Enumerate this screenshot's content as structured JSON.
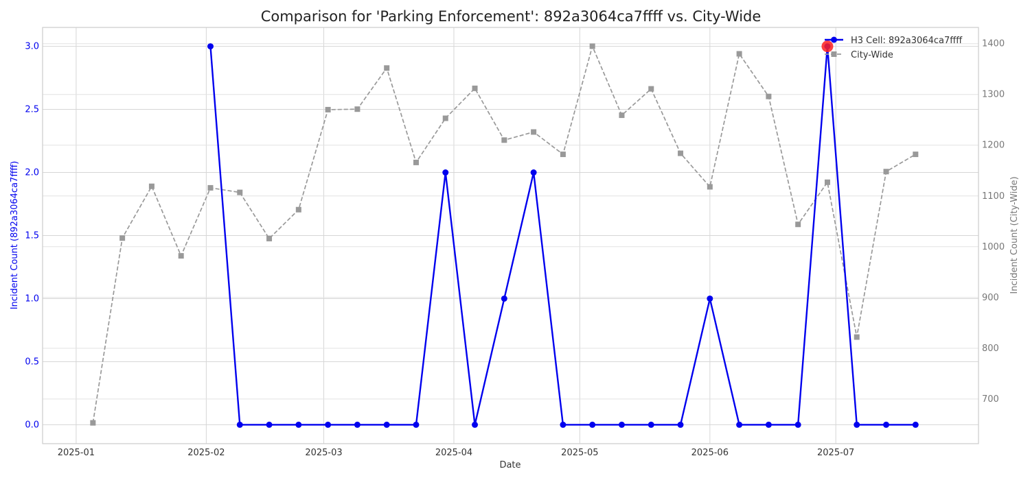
{
  "chart_data": {
    "type": "line",
    "title": "Comparison for 'Parking Enforcement': 892a3064ca7ffff vs. City-Wide",
    "xlabel": "Date",
    "ylabel_left": "Incident Count (892a3064ca7ffff)",
    "ylabel_right": "Incident Count (City-Wide)",
    "x_ticks": [
      "2025-01",
      "2025-02",
      "2025-03",
      "2025-04",
      "2025-05",
      "2025-06",
      "2025-07"
    ],
    "x_tick_dates": [
      "2025-01-01",
      "2025-02-01",
      "2025-03-01",
      "2025-04-01",
      "2025-05-01",
      "2025-06-01",
      "2025-07-01"
    ],
    "xlim": [
      "2024-12-24",
      "2025-08-04"
    ],
    "ylim_left": [
      -0.15,
      3.15
    ],
    "yticks_left": [
      "0.0",
      "0.5",
      "1.0",
      "1.5",
      "2.0",
      "2.5",
      "3.0"
    ],
    "ylim_right": [
      612,
      1432
    ],
    "yticks_right": [
      "700",
      "800",
      "900",
      "1000",
      "1100",
      "1200",
      "1300",
      "1400"
    ],
    "grid": true,
    "legend_position": "top-right",
    "series": [
      {
        "name": "H3 Cell: 892a3064ca7ffff",
        "axis": "left",
        "color": "#0000ee",
        "style": "solid",
        "marker": "circle",
        "x": [
          "2025-02-02",
          "2025-02-09",
          "2025-02-16",
          "2025-02-23",
          "2025-03-02",
          "2025-03-09",
          "2025-03-16",
          "2025-03-23",
          "2025-03-30",
          "2025-04-06",
          "2025-04-13",
          "2025-04-20",
          "2025-04-27",
          "2025-05-04",
          "2025-05-11",
          "2025-05-18",
          "2025-05-25",
          "2025-06-01",
          "2025-06-08",
          "2025-06-15",
          "2025-06-22",
          "2025-06-29",
          "2025-07-06",
          "2025-07-13",
          "2025-07-20"
        ],
        "values": [
          3,
          0,
          0,
          0,
          0,
          0,
          0,
          0,
          2,
          0,
          1,
          2,
          0,
          0,
          0,
          0,
          0,
          1,
          0,
          0,
          0,
          3,
          0,
          0,
          0
        ]
      },
      {
        "name": "City-Wide",
        "axis": "right",
        "color": "#999999",
        "style": "dashed",
        "marker": "square",
        "x": [
          "2025-01-05",
          "2025-01-12",
          "2025-01-19",
          "2025-01-26",
          "2025-02-02",
          "2025-02-09",
          "2025-02-16",
          "2025-02-23",
          "2025-03-02",
          "2025-03-09",
          "2025-03-16",
          "2025-03-23",
          "2025-03-30",
          "2025-04-06",
          "2025-04-13",
          "2025-04-20",
          "2025-04-27",
          "2025-05-04",
          "2025-05-11",
          "2025-05-18",
          "2025-05-25",
          "2025-06-01",
          "2025-06-08",
          "2025-06-15",
          "2025-06-22",
          "2025-06-29",
          "2025-07-06",
          "2025-07-13",
          "2025-07-20"
        ],
        "values": [
          653,
          1017,
          1119,
          982,
          1116,
          1107,
          1016,
          1073,
          1270,
          1271,
          1352,
          1166,
          1253,
          1312,
          1210,
          1226,
          1182,
          1395,
          1259,
          1311,
          1184,
          1118,
          1380,
          1296,
          1044,
          1127,
          822,
          1148,
          1182
        ]
      }
    ],
    "highlight": {
      "series": 0,
      "x": "2025-06-29",
      "value": 3,
      "color": "#ff2020"
    }
  }
}
